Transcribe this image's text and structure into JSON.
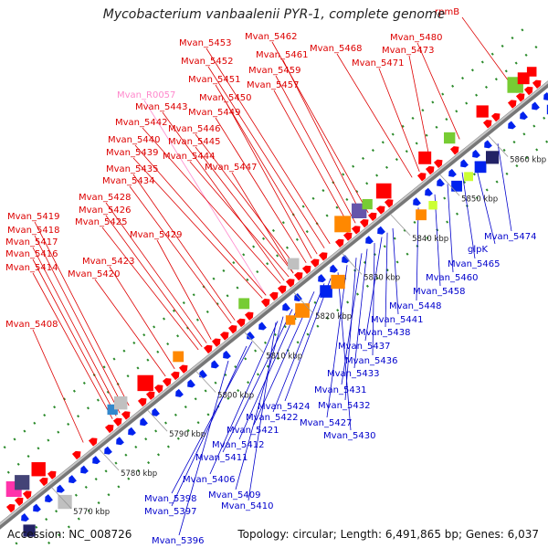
{
  "title": "Mycobacterium vanbaalenii PYR-1, complete genome",
  "footer": {
    "accession": "Accession: NC_008726",
    "summary": "Topology: circular; Length: 6,491,865 bp; Genes: 6,037"
  },
  "colors": {
    "forward_label": "#dd0000",
    "reverse_label": "#0000cc",
    "rna_label": "#ff88cc",
    "forward_gene": "#ff0000",
    "reverse_gene": "#0022ee",
    "backbone": "#888888"
  },
  "scale_ticks": [
    "5770 kbp",
    "5780 kbp",
    "5790 kbp",
    "5800 kbp",
    "5810 kbp",
    "5820 kbp",
    "5830 kbp",
    "5840 kbp",
    "5850 kbp",
    "5860 kbp"
  ],
  "top_labels": [
    "rpmB",
    "Mvan_5480",
    "Mvan_5473",
    "Mvan_5471",
    "Mvan_5468",
    "Mvan_5462",
    "Mvan_5461",
    "Mvan_5459",
    "Mvan_5457",
    "Mvan_5453",
    "Mvan_5452",
    "Mvan_5451",
    "Mvan_5450",
    "Mvan_5449",
    "Mvan_R0057",
    "Mvan_5443",
    "Mvan_5442",
    "Mvan_5446",
    "Mvan_5445",
    "Mvan_5444",
    "Mvan_5440",
    "Mvan_5439",
    "Mvan_5447",
    "Mvan_5435",
    "Mvan_5434",
    "Mvan_5428",
    "Mvan_5426",
    "Mvan_5425",
    "Mvan_5429",
    "Mvan_5419",
    "Mvan_5418",
    "Mvan_5417",
    "Mvan_5416",
    "Mvan_5414",
    "Mvan_5423",
    "Mvan_5420",
    "Mvan_5408"
  ],
  "bottom_labels": [
    "Mvan_5474",
    "glpK",
    "Mvan_5465",
    "Mvan_5460",
    "Mvan_5458",
    "Mvan_5448",
    "Mvan_5441",
    "Mvan_5438",
    "Mvan_5437",
    "Mvan_5436",
    "Mvan_5433",
    "Mvan_5431",
    "Mvan_5432",
    "Mvan_5424",
    "Mvan_5427",
    "Mvan_5422",
    "Mvan_5430",
    "Mvan_5421",
    "Mvan_5412",
    "Mvan_5411",
    "Mvan_5406",
    "Mvan_5409",
    "Mvan_5410",
    "Mvan_5398",
    "Mvan_5397",
    "Mvan_5396"
  ]
}
